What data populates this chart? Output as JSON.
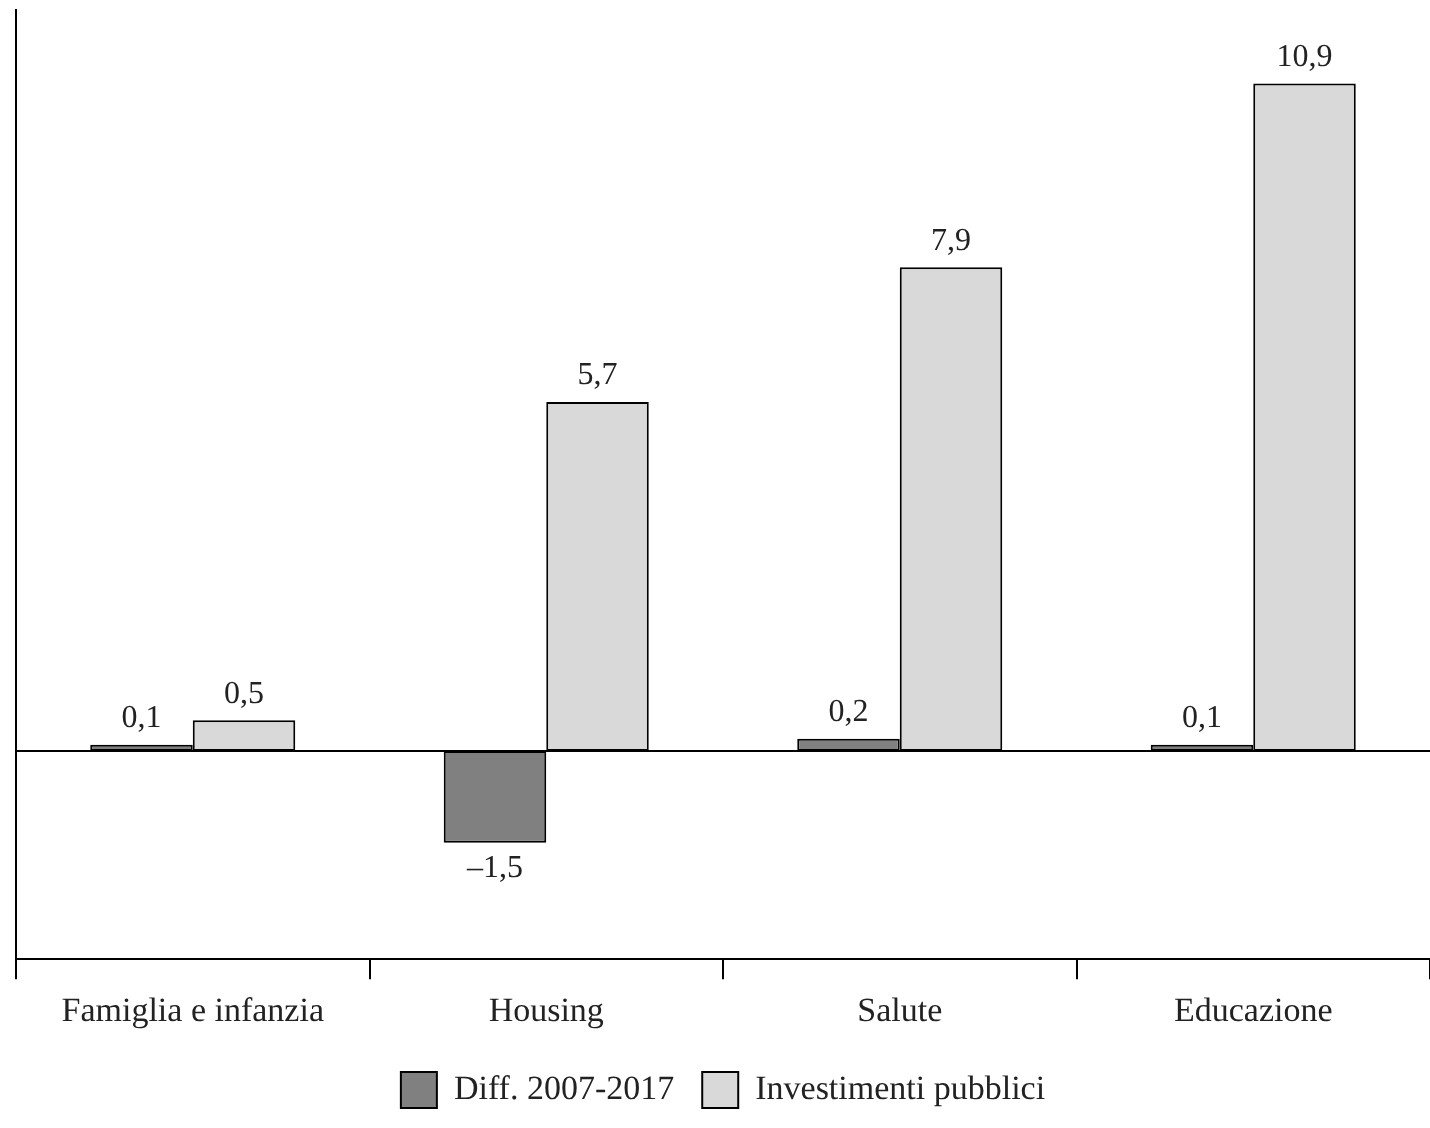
{
  "chart_data": {
    "type": "bar",
    "categories": [
      "Famiglia e infanzia",
      "Housing",
      "Salute",
      "Educazione"
    ],
    "series": [
      {
        "name": "Diff. 2007-2017",
        "color": "#808080",
        "values": [
          0.1,
          -1.5,
          0.2,
          0.1
        ],
        "value_labels": [
          "0,1",
          "–1,5",
          "0,2",
          "0,1"
        ]
      },
      {
        "name": "Investimenti pubblici",
        "color": "#d9d9d9",
        "values": [
          0.5,
          5.7,
          7.9,
          10.9
        ],
        "value_labels": [
          "0,5",
          "5,7",
          "7,9",
          "10,9"
        ]
      }
    ],
    "ylim": [
      -3.4,
      12.1
    ],
    "tick_labels": "x",
    "grid": false,
    "legend": "bottom"
  }
}
